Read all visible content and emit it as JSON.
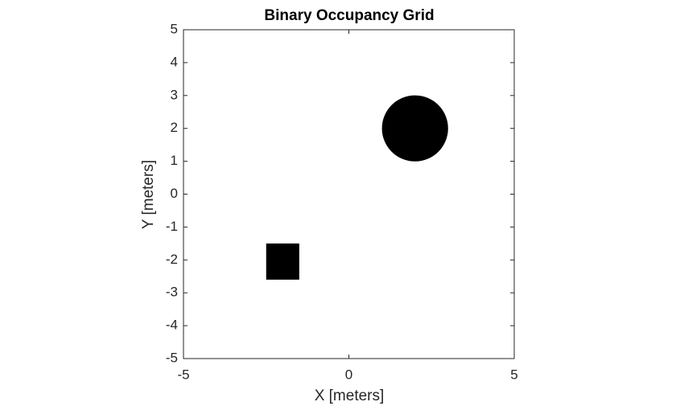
{
  "chart_data": {
    "type": "occupancy",
    "title": "Binary Occupancy Grid",
    "x_label": "X [meters]",
    "y_label": "Y [meters]",
    "xlim": [
      -5,
      5
    ],
    "ylim": [
      -5,
      5
    ],
    "xticks": [
      -5,
      0,
      5
    ],
    "yticks": [
      -5,
      -4,
      -3,
      -2,
      -1,
      0,
      1,
      2,
      3,
      4,
      5
    ],
    "grid": false,
    "color": "#000000",
    "obstacles": [
      {
        "shape": "rect",
        "x": [
          -2.5,
          -1.5
        ],
        "y": [
          -2.6,
          -1.5
        ]
      },
      {
        "shape": "circle",
        "center": [
          2,
          2
        ],
        "radius": 1
      }
    ]
  }
}
